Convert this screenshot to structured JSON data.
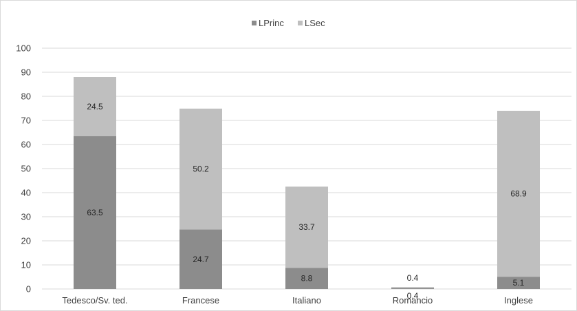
{
  "chart_data": {
    "type": "bar",
    "stacked": true,
    "categories": [
      "Tedesco/Sv. ted.",
      "Francese",
      "Italiano",
      "Romancio",
      "Inglese"
    ],
    "series": [
      {
        "name": "LPrinc",
        "values": [
          63.5,
          24.7,
          8.8,
          0.4,
          5.1
        ],
        "color": "#8c8c8c"
      },
      {
        "name": "LSec",
        "values": [
          24.5,
          50.2,
          33.7,
          0.4,
          68.9
        ],
        "color": "#bfbfbf"
      }
    ],
    "title": "",
    "xlabel": "",
    "ylabel": "",
    "ylim": [
      0,
      100
    ],
    "yticks": [
      0,
      10,
      20,
      30,
      40,
      50,
      60,
      70,
      80,
      90,
      100
    ],
    "grid": true,
    "legend_position": "top-center",
    "data_labels": true
  }
}
